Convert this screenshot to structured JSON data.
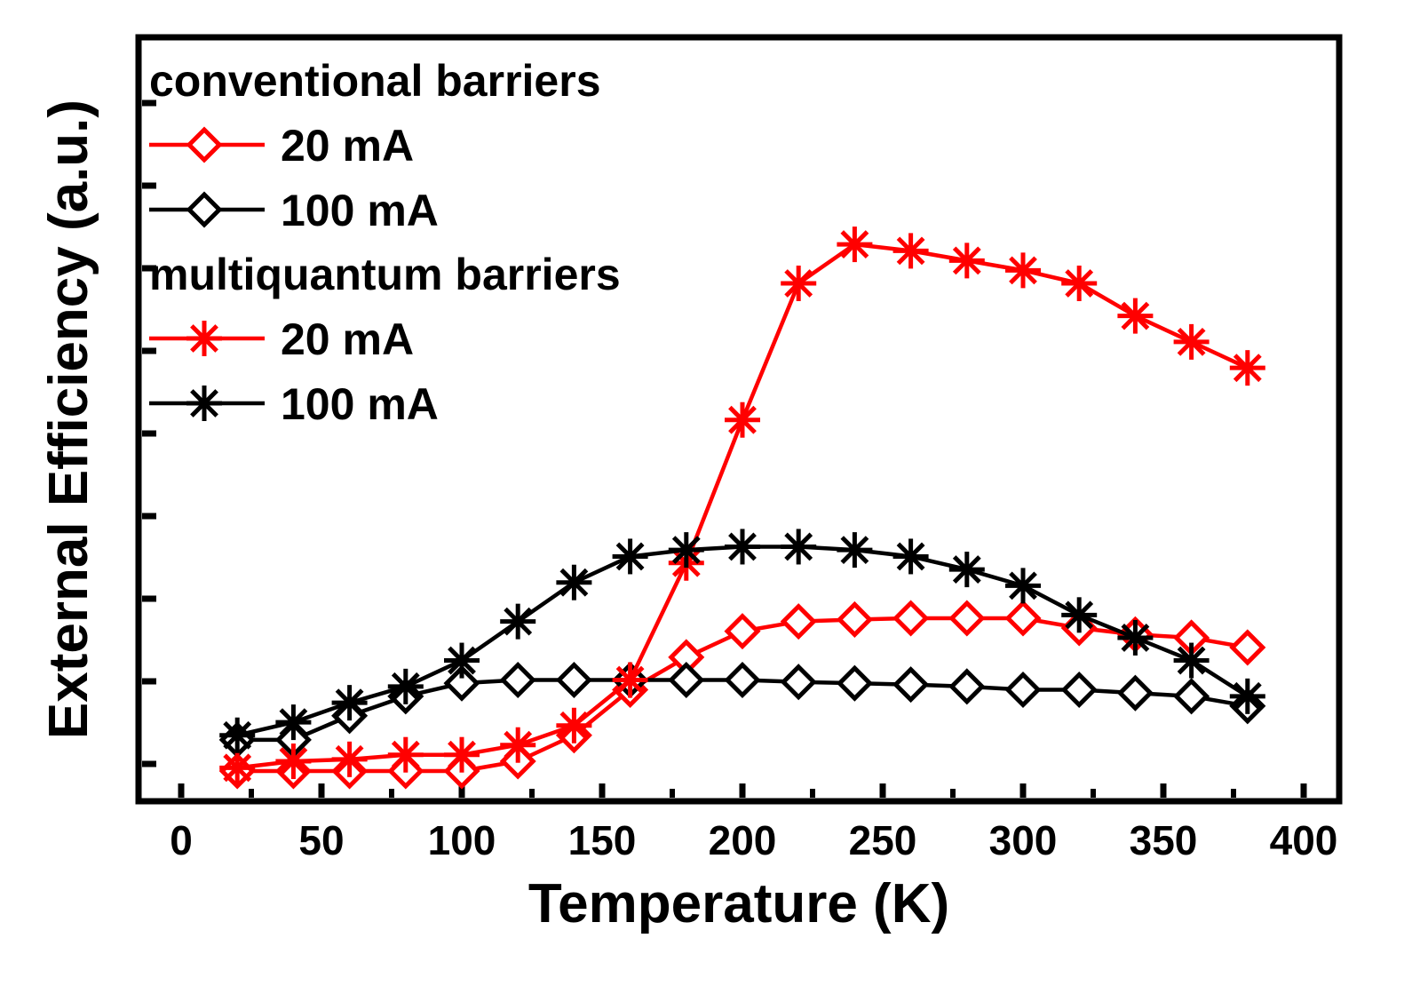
{
  "chart_data": {
    "type": "line",
    "title": "",
    "xlabel": "Temperature (K)",
    "ylabel": "External Efficiency (a.u.)",
    "xlim": [
      -15,
      415
    ],
    "ylim": [
      0,
      1
    ],
    "x_ticks": [
      0,
      50,
      100,
      150,
      200,
      250,
      300,
      350,
      400
    ],
    "y_ticks_labeled": false,
    "legend_position": "top-left",
    "legend_groups": [
      {
        "heading": "conventional barriers",
        "series": [
          0,
          1
        ]
      },
      {
        "heading": "multiquantum barriers",
        "series": [
          2,
          3
        ]
      }
    ],
    "colors": {
      "red": "#ff0000",
      "black": "#000000"
    },
    "x": [
      20,
      40,
      60,
      80,
      100,
      120,
      140,
      160,
      180,
      200,
      220,
      240,
      260,
      280,
      300,
      320,
      340,
      360,
      380
    ],
    "series": [
      {
        "name": "20 mA",
        "group": "conventional barriers",
        "color": "#ff0000",
        "marker": "diamond",
        "values": [
          0.0,
          0.0,
          0.0,
          0.0,
          0.0,
          0.015,
          0.055,
          0.125,
          0.175,
          0.215,
          0.23,
          0.233,
          0.235,
          0.235,
          0.235,
          0.22,
          0.21,
          0.205,
          0.19
        ]
      },
      {
        "name": "100 mA",
        "group": "conventional barriers",
        "color": "#000000",
        "marker": "diamond",
        "values": [
          0.048,
          0.048,
          0.085,
          0.115,
          0.135,
          0.14,
          0.14,
          0.14,
          0.14,
          0.14,
          0.137,
          0.135,
          0.133,
          0.13,
          0.125,
          0.125,
          0.12,
          0.115,
          0.1
        ]
      },
      {
        "name": "20 mA",
        "group": "multiquantum barriers",
        "color": "#ff0000",
        "marker": "asterisk",
        "values": [
          0.005,
          0.015,
          0.018,
          0.025,
          0.025,
          0.04,
          0.07,
          0.14,
          0.32,
          0.54,
          0.75,
          0.81,
          0.8,
          0.785,
          0.77,
          0.75,
          0.7,
          0.66,
          0.62
        ]
      },
      {
        "name": "100 mA",
        "group": "multiquantum barriers",
        "color": "#000000",
        "marker": "asterisk",
        "values": [
          0.055,
          0.075,
          0.105,
          0.13,
          0.17,
          0.23,
          0.29,
          0.33,
          0.34,
          0.345,
          0.345,
          0.34,
          0.33,
          0.31,
          0.285,
          0.24,
          0.205,
          0.17,
          0.115
        ]
      }
    ]
  }
}
